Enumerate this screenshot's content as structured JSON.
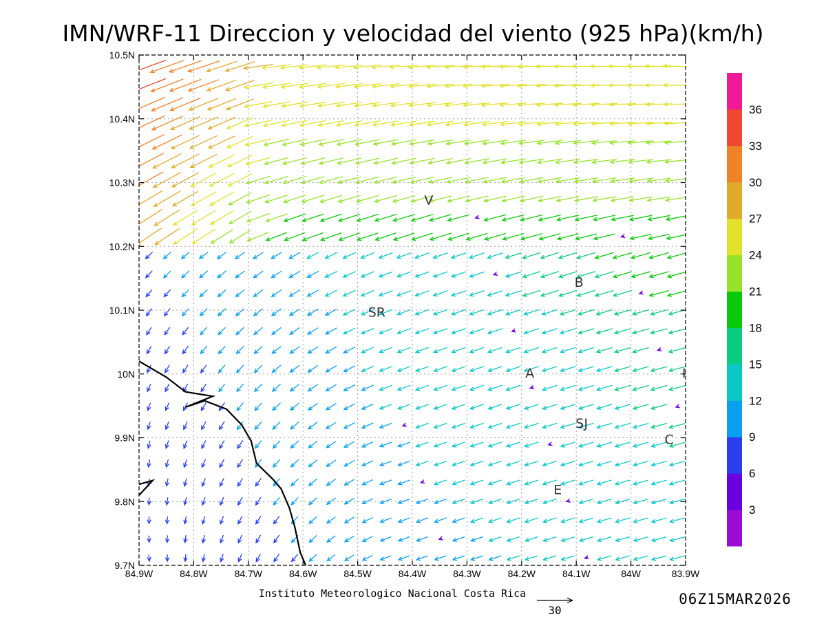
{
  "title": "IMN/WRF-11 Direccion y velocidad del viento (925 hPa)(km/h)",
  "footer": {
    "institution": "Instituto Meteorologico Nacional Costa Rica",
    "timestamp": "06Z15MAR2026",
    "reference_vector_value": "30"
  },
  "map": {
    "lon_range": [
      -84.9,
      -83.9
    ],
    "lat_range": [
      9.7,
      10.5
    ],
    "lon_tick_labels": [
      "84.9W",
      "84.8W",
      "84.7W",
      "84.6W",
      "84.5W",
      "84.4W",
      "84.3W",
      "84.2W",
      "84.1W",
      "84W",
      "83.9W"
    ],
    "lat_tick_labels": [
      "9.7N",
      "9.8N",
      "9.9N",
      "10N",
      "10.1N",
      "10.2N",
      "10.3N",
      "10.4N",
      "10.5N"
    ],
    "grid": "dotted",
    "coastline": {
      "color": "#000000",
      "lines": [
        [
          [
            -84.9,
            10.02
          ],
          [
            -84.85,
            9.995
          ],
          [
            -84.815,
            9.972
          ],
          [
            -84.765,
            9.965
          ],
          [
            -84.815,
            9.948
          ],
          [
            -84.78,
            9.958
          ],
          [
            -84.74,
            9.945
          ],
          [
            -84.712,
            9.92
          ],
          [
            -84.695,
            9.895
          ],
          [
            -84.685,
            9.86
          ],
          [
            -84.655,
            9.835
          ],
          [
            -84.64,
            9.82
          ],
          [
            -84.625,
            9.79
          ],
          [
            -84.615,
            9.76
          ],
          [
            -84.605,
            9.72
          ],
          [
            -84.595,
            9.7
          ]
        ],
        [
          [
            -84.9,
            9.827
          ],
          [
            -84.875,
            9.833
          ],
          [
            -84.9,
            9.81
          ]
        ]
      ]
    },
    "place_labels": [
      {
        "text": "V",
        "lon": -84.37,
        "lat": 10.272
      },
      {
        "text": "B",
        "lon": -84.095,
        "lat": 10.143
      },
      {
        "text": "SR",
        "lon": -84.465,
        "lat": 10.096
      },
      {
        "text": "A",
        "lon": -84.185,
        "lat": 10.001
      },
      {
        "text": "I",
        "lon": -83.903,
        "lat": 10.001
      },
      {
        "text": "SJ",
        "lon": -84.09,
        "lat": 9.922
      },
      {
        "text": "C",
        "lon": -83.93,
        "lat": 9.897
      },
      {
        "text": "E",
        "lon": -84.134,
        "lat": 9.818
      }
    ]
  },
  "colorbar": {
    "labels": [
      "3",
      "6",
      "9",
      "12",
      "15",
      "18",
      "21",
      "24",
      "27",
      "30",
      "33",
      "36"
    ],
    "colors": [
      "#9b0dd4",
      "#6a00e0",
      "#2a3ef0",
      "#0aa0f0",
      "#0ac8c8",
      "#0acc82",
      "#0ac80a",
      "#98e22a",
      "#e2e22a",
      "#e2aa2a",
      "#f08228",
      "#f04632",
      "#f01a96"
    ]
  },
  "chart_data": {
    "type": "vector-field",
    "quantity": "wind direction and speed at 925 hPa",
    "units": "km/h",
    "reference_vector": 30,
    "lon": [
      -84.9,
      -83.9
    ],
    "lat": [
      9.7,
      10.5
    ],
    "grid_points_lon": 30,
    "grid_points_lat": 27,
    "pattern_summary": {
      "southwest": {
        "direction_from_deg": 0,
        "speed_kmh": 7
      },
      "interior": {
        "direction_from_deg": 30,
        "speed_kmh": 9
      },
      "east": {
        "direction_from_deg": 75,
        "speed_kmh": 12
      },
      "north": {
        "direction_from_deg": 75,
        "speed_kmh": 25
      },
      "northwest_corner": {
        "direction_from_deg": 65,
        "speed_kmh": 34
      }
    }
  }
}
